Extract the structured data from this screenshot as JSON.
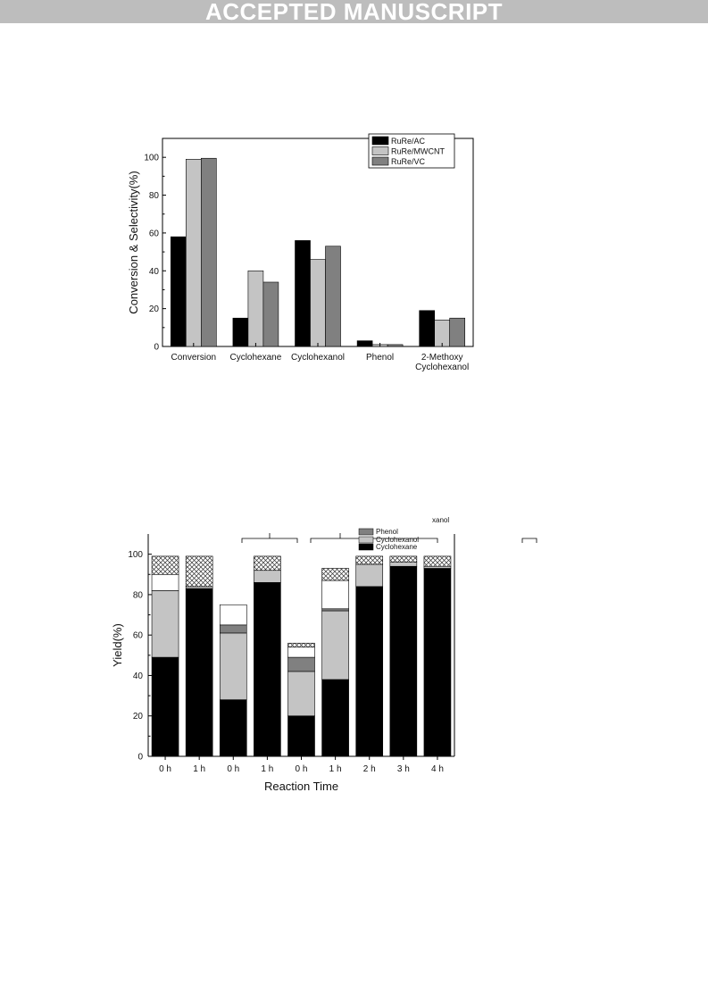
{
  "banner": "ACCEPTED MANUSCRIPT",
  "colors": {
    "RuRe/AC": "#000000",
    "RuRe/MWCNT": "#c4c4c4",
    "RuRe/VC": "#808080",
    "black": "#000000",
    "light_gray": "#c4c4c4",
    "dark_gray": "#808080",
    "white": "#ffffff"
  },
  "chart_data": [
    {
      "type": "bar",
      "categories": [
        "Conversion",
        "Cyclohexane",
        "Cyclohexanol",
        "Phenol",
        "2-Methoxy Cyclohexanol"
      ],
      "series": [
        {
          "name": "RuRe/AC",
          "values": [
            58,
            15,
            56,
            3,
            19
          ]
        },
        {
          "name": "RuRe/MWCNT",
          "values": [
            99,
            40,
            46,
            1,
            14
          ]
        },
        {
          "name": "RuRe/VC",
          "values": [
            99.5,
            34,
            53,
            1,
            15
          ]
        }
      ],
      "title": "",
      "xlabel": "",
      "ylabel": "Conversion & Selectivity(%)",
      "ylim": [
        0,
        110
      ],
      "yticks": [
        0,
        20,
        40,
        60,
        80,
        100
      ],
      "legend_position": "top-right",
      "grid": false
    },
    {
      "type": "bar",
      "stacked": true,
      "categories": [
        "0 h",
        "1 h",
        "0 h",
        "1 h",
        "0 h",
        "1 h",
        "2 h",
        "3 h",
        "4 h"
      ],
      "series": [
        {
          "name": "Cyclohexane",
          "values": [
            49,
            83,
            28,
            86,
            20,
            38,
            84,
            94,
            93
          ]
        },
        {
          "name": "Cyclohexanol",
          "values": [
            33,
            1,
            33,
            6,
            22,
            34,
            11,
            2,
            1
          ]
        },
        {
          "name": "Phenol",
          "values": [
            0,
            0,
            4,
            0,
            7,
            1,
            0,
            0,
            0
          ]
        },
        {
          "values": [
            8,
            0,
            10,
            0,
            5,
            14,
            0,
            0,
            0
          ]
        },
        {
          "values": [
            9,
            15,
            0,
            7,
            2,
            6,
            4,
            3,
            5
          ]
        }
      ],
      "legend_labels_visible": [
        "Phenol",
        "Cyclohexanol",
        "Cyclohexane",
        "xanol"
      ],
      "title": "",
      "xlabel": "Reaction Time",
      "ylabel": "Yield(%)",
      "ylim": [
        0,
        110
      ],
      "yticks": [
        0,
        20,
        40,
        60,
        80,
        100
      ],
      "legend_position": "top",
      "grid": false
    }
  ]
}
